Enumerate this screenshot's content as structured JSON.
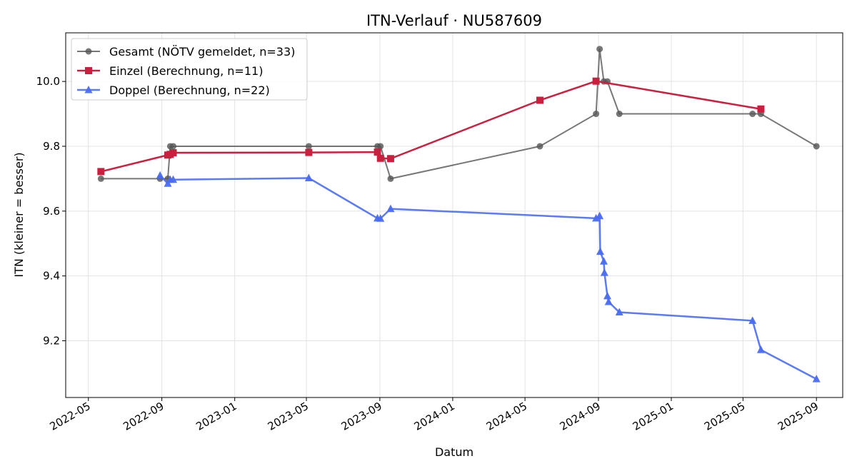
{
  "chart_data": {
    "type": "line",
    "title": "ITN-Verlauf · NU587609",
    "xlabel": "Datum",
    "ylabel": "ITN  (kleiner = besser)",
    "x_type": "date",
    "xlim": [
      "2022-03-24",
      "2025-10-15"
    ],
    "ylim": [
      9.025,
      10.15
    ],
    "x_ticks": [
      "2022-05",
      "2022-09",
      "2023-01",
      "2023-05",
      "2023-09",
      "2024-01",
      "2024-05",
      "2024-09",
      "2025-01",
      "2025-05",
      "2025-09"
    ],
    "y_ticks": [
      9.2,
      9.4,
      9.6,
      9.8,
      10.0
    ],
    "grid": true,
    "legend_position": "top-left",
    "series": [
      {
        "name": "Gesamt (NÖTV gemeldet, n=33)",
        "color": "#555555",
        "marker": "circle",
        "x": [
          "2022-05-22",
          "2022-08-29",
          "2022-09-11",
          "2022-09-15",
          "2022-09-20",
          "2023-05-05",
          "2023-08-28",
          "2023-09-02",
          "2023-09-19",
          "2024-05-26",
          "2024-08-28",
          "2024-09-03",
          "2024-09-10",
          "2024-09-16",
          "2024-10-06",
          "2025-05-17",
          "2025-05-31",
          "2025-09-01"
        ],
        "y": [
          9.7,
          9.7,
          9.7,
          9.8,
          9.8,
          9.8,
          9.8,
          9.8,
          9.7,
          9.8,
          9.9,
          10.1,
          10.0,
          10.0,
          9.9,
          9.9,
          9.9,
          9.8
        ]
      },
      {
        "name": "Einzel (Berechnung, n=11)",
        "color": "#c8213f",
        "marker": "square",
        "x": [
          "2022-05-22",
          "2022-09-11",
          "2022-09-15",
          "2022-09-20",
          "2023-05-05",
          "2023-08-28",
          "2023-09-02",
          "2023-09-19",
          "2024-05-26",
          "2024-08-28",
          "2025-05-31"
        ],
        "y": [
          9.722,
          9.773,
          9.775,
          9.78,
          9.781,
          9.782,
          9.763,
          9.762,
          9.942,
          10.001,
          9.915
        ]
      },
      {
        "name": "Doppel (Berechnung, n=22)",
        "color": "#4a6cf0",
        "marker": "triangle",
        "x": [
          "2022-08-29",
          "2022-09-11",
          "2022-09-15",
          "2022-09-20",
          "2023-05-05",
          "2023-08-28",
          "2023-09-02",
          "2023-09-19",
          "2024-08-28",
          "2024-09-03",
          "2024-09-04",
          "2024-09-10",
          "2024-09-11",
          "2024-09-16",
          "2024-09-18",
          "2024-10-06",
          "2025-05-17",
          "2025-05-31",
          "2025-09-01"
        ],
        "y": [
          9.71,
          9.685,
          9.697,
          9.697,
          9.702,
          9.578,
          9.577,
          9.607,
          9.578,
          9.585,
          9.475,
          9.445,
          9.41,
          9.338,
          9.32,
          9.288,
          9.262,
          9.172,
          9.082
        ]
      }
    ]
  }
}
